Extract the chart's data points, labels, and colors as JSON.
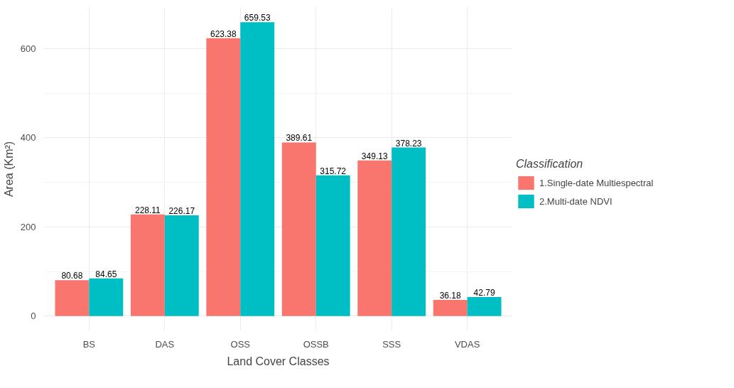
{
  "chart_data": {
    "type": "bar",
    "xlabel": "Land Cover Classes",
    "ylabel": "Area (Km²)",
    "legend_title": "Classification",
    "categories": [
      "BS",
      "DAS",
      "OSS",
      "OSSB",
      "SSS",
      "VDAS"
    ],
    "series": [
      {
        "name": "1.Single-date Multiespectral",
        "color": "#f8766d",
        "values": [
          80.68,
          228.11,
          623.38,
          389.61,
          349.13,
          36.18
        ]
      },
      {
        "name": "2.Multi-date NDVI",
        "color": "#00bfc4",
        "values": [
          84.65,
          226.17,
          659.53,
          315.72,
          378.23,
          42.79
        ]
      }
    ],
    "ylim": [
      -33,
      692.5
    ],
    "yticks": [
      0,
      200,
      400,
      600
    ],
    "grid": true,
    "legend": "right",
    "data_labels": true
  }
}
